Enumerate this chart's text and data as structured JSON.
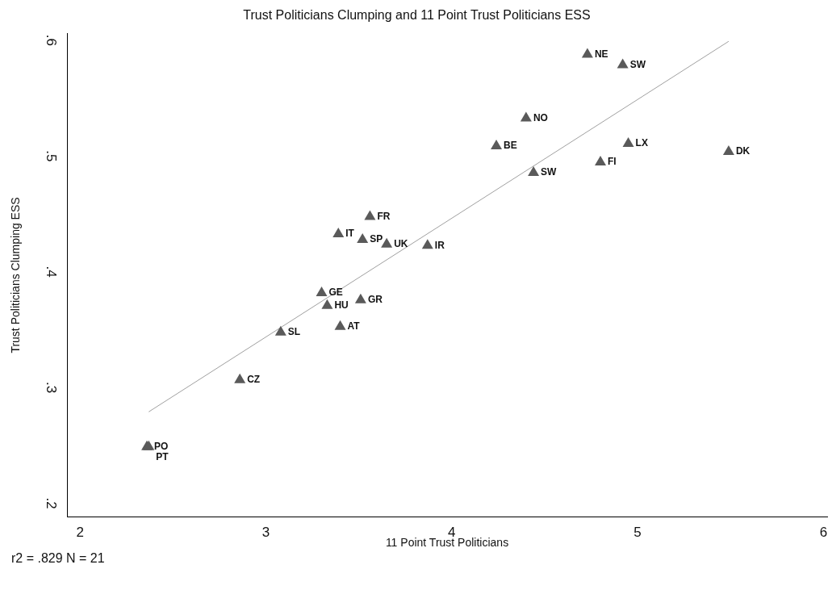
{
  "chart_data": {
    "type": "scatter",
    "title": "Trust Politicians Clumping and 11 Point Trust Politicians ESS",
    "xlabel": "11 Point Trust Politicians",
    "ylabel": "Trust Politicians Clumping ESS",
    "series": [
      {
        "color": "#5a5a5a",
        "marker": "triangle",
        "x": [
          4.73,
          4.92,
          4.4,
          4.24,
          4.95,
          5.49,
          4.8,
          4.44,
          3.56,
          3.39,
          3.52,
          3.65,
          3.87,
          3.3,
          3.51,
          3.33,
          3.4,
          3.08,
          2.86,
          2.36,
          2.37
        ],
        "values": [
          0.589,
          0.58,
          0.534,
          0.51,
          0.512,
          0.505,
          0.496,
          0.487,
          0.449,
          0.434,
          0.429,
          0.425,
          0.424,
          0.383,
          0.377,
          0.372,
          0.354,
          0.349,
          0.308,
          0.25,
          0.25
        ]
      },
      {
        "type": "line",
        "color": "#a0a0a0",
        "x": [
          2.37,
          5.49
        ],
        "values": [
          0.279,
          0.599
        ]
      }
    ],
    "annotations": [
      {
        "text": "NE",
        "x": 4.73,
        "y": 0.589
      },
      {
        "text": "SW",
        "x": 4.92,
        "y": 0.58
      },
      {
        "text": "NO",
        "x": 4.4,
        "y": 0.534
      },
      {
        "text": "BE",
        "x": 4.24,
        "y": 0.51
      },
      {
        "text": "LX",
        "x": 4.95,
        "y": 0.512
      },
      {
        "text": "DK",
        "x": 5.49,
        "y": 0.505
      },
      {
        "text": "FI",
        "x": 4.8,
        "y": 0.496
      },
      {
        "text": "SW",
        "x": 4.44,
        "y": 0.487
      },
      {
        "text": "FR",
        "x": 3.56,
        "y": 0.449
      },
      {
        "text": "IT",
        "x": 3.39,
        "y": 0.434
      },
      {
        "text": "SP",
        "x": 3.52,
        "y": 0.429
      },
      {
        "text": "UK",
        "x": 3.65,
        "y": 0.425
      },
      {
        "text": "IR",
        "x": 3.87,
        "y": 0.424
      },
      {
        "text": "GE",
        "x": 3.3,
        "y": 0.383
      },
      {
        "text": "GR",
        "x": 3.51,
        "y": 0.377
      },
      {
        "text": "HU",
        "x": 3.33,
        "y": 0.372
      },
      {
        "text": "AT",
        "x": 3.4,
        "y": 0.354
      },
      {
        "text": "SL",
        "x": 3.08,
        "y": 0.349
      },
      {
        "text": "CZ",
        "x": 2.86,
        "y": 0.308
      },
      {
        "text": "PO",
        "x": 2.36,
        "y": 0.25
      },
      {
        "text": "PT",
        "x": 2.37,
        "y": 0.25
      },
      "r2 = .829 N = 21"
    ],
    "xlim": [
      1.93,
      6.02
    ],
    "xticks": [
      2,
      3,
      4,
      5,
      6
    ],
    "ylim": [
      0.188,
      0.606
    ],
    "yticks": [
      {
        "value": 0.2,
        "label": ".2"
      },
      {
        "value": 0.3,
        "label": ".3"
      },
      {
        "value": 0.4,
        "label": ".4"
      },
      {
        "value": 0.5,
        "label": ".5"
      },
      {
        "value": 0.6,
        "label": ".6"
      }
    ],
    "grid": false,
    "legend": false,
    "line_style": "solid"
  }
}
